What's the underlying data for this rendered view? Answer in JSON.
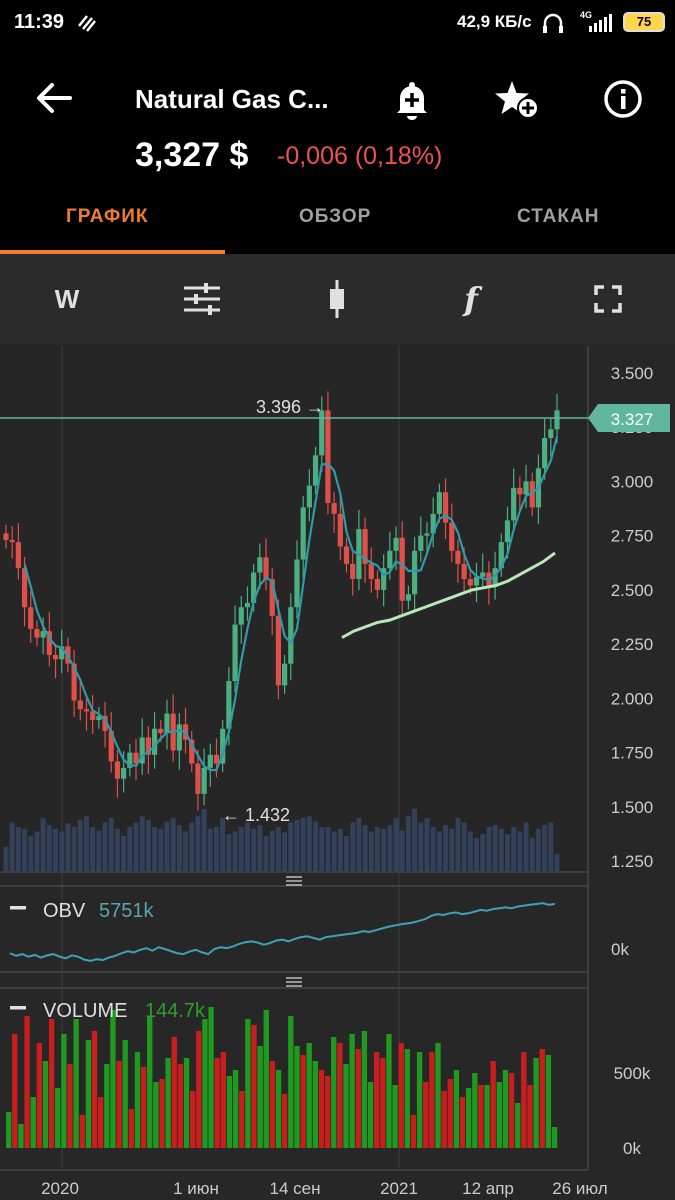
{
  "status_bar": {
    "time": "11:39",
    "network_speed": "42,9 КБ/с",
    "network_type": "4G",
    "battery": "75",
    "icons": [
      "signal-icon",
      "headset-icon",
      "battery-icon"
    ]
  },
  "header": {
    "instrument": "Natural Gas C...",
    "price": "3,327 $",
    "change": "-0,006 (0,18%)",
    "change_color": "#ef5350",
    "icons": [
      "back-arrow-icon",
      "add-alert-icon",
      "add-favorite-icon",
      "info-icon"
    ]
  },
  "tabs": [
    {
      "label": "ГРАФИК",
      "active": true
    },
    {
      "label": "ОБЗОР",
      "active": false
    },
    {
      "label": "СТАКАН",
      "active": false
    }
  ],
  "accent_color": "#ef7d2c",
  "toolbar": {
    "period_label": "W",
    "function_label": "f",
    "icons": [
      "settings-sliders-icon",
      "candlestick-icon",
      "function-icon",
      "fullscreen-icon"
    ]
  },
  "chart_data": [
    {
      "type": "candlestick",
      "y_ticks": [
        "3.500",
        "3.250",
        "3.000",
        "2.750",
        "2.500",
        "2.250",
        "2.000",
        "1.750",
        "1.500",
        "1.250"
      ],
      "ylim": [
        1.2,
        3.55
      ],
      "x_ticks": [
        "2020",
        "1 июн",
        "14 сен",
        "2021",
        "12 апр",
        "26 июл"
      ],
      "current_price_label": "3.327",
      "current_price": 3.327,
      "high_annotation": "3.396 →",
      "high_value": 3.396,
      "low_annotation": "← 1.432",
      "low_value": 1.432,
      "up_color": "#4caf82",
      "down_color": "#e0504a",
      "closes": [
        2.73,
        2.72,
        2.6,
        2.42,
        2.32,
        2.28,
        2.31,
        2.2,
        2.18,
        2.24,
        2.16,
        1.99,
        1.95,
        1.94,
        1.9,
        1.92,
        1.85,
        1.71,
        1.63,
        1.68,
        1.75,
        1.7,
        1.82,
        1.74,
        1.86,
        1.84,
        1.93,
        1.76,
        1.88,
        1.81,
        1.7,
        1.56,
        1.68,
        1.74,
        1.7,
        1.86,
        2.08,
        2.34,
        2.42,
        2.44,
        2.58,
        2.65,
        2.55,
        2.38,
        2.06,
        2.16,
        2.42,
        2.64,
        2.88,
        2.98,
        3.12,
        3.327,
        2.9,
        2.85,
        2.7,
        2.62,
        2.55,
        2.78,
        2.62,
        2.55,
        2.5,
        2.6,
        2.68,
        2.74,
        2.45,
        2.48,
        2.68,
        2.75,
        2.76,
        2.85,
        2.95,
        2.81,
        2.68,
        2.62,
        2.55,
        2.52,
        2.56,
        2.58,
        2.52,
        2.6,
        2.72,
        2.82,
        2.97,
        2.94,
        3.0,
        2.88,
        3.06,
        3.2,
        3.24,
        3.327
      ],
      "ma_long": [
        2.28,
        2.31,
        2.33,
        2.35,
        2.36,
        2.38,
        2.4,
        2.42,
        2.44,
        2.46,
        2.48,
        2.5,
        2.51,
        2.52,
        2.54,
        2.57,
        2.6,
        2.63,
        2.67
      ],
      "volume_heights": [
        0.28,
        0.55,
        0.5,
        0.48,
        0.4,
        0.45,
        0.6,
        0.52,
        0.48,
        0.45,
        0.54,
        0.5,
        0.58,
        0.62,
        0.5,
        0.46,
        0.55,
        0.6,
        0.48,
        0.4,
        0.5,
        0.55,
        0.62,
        0.58,
        0.5,
        0.48,
        0.56,
        0.6,
        0.52,
        0.45,
        0.55,
        0.62,
        0.7,
        0.48,
        0.5,
        0.6,
        0.42,
        0.45,
        0.5,
        0.55,
        0.48,
        0.52,
        0.4,
        0.46,
        0.5,
        0.44,
        0.55,
        0.58,
        0.6,
        0.62,
        0.56,
        0.5,
        0.5,
        0.45,
        0.48,
        0.4,
        0.55,
        0.6,
        0.52,
        0.45,
        0.5,
        0.48,
        0.52,
        0.6,
        0.46,
        0.62,
        0.7,
        0.55,
        0.6,
        0.5,
        0.45,
        0.52,
        0.48,
        0.6,
        0.55,
        0.45,
        0.38,
        0.42,
        0.5,
        0.52,
        0.48,
        0.42,
        0.5,
        0.45,
        0.55,
        0.38,
        0.48,
        0.52,
        0.55,
        0.2
      ]
    },
    {
      "type": "line",
      "title": "OBV",
      "value_label": "5751k",
      "value_color": "#5ba4b0",
      "y_ticks": [
        "0k"
      ],
      "values": [
        -10,
        -16,
        -12,
        -18,
        -14,
        -20,
        -15,
        -12,
        -18,
        -22,
        -15,
        -18,
        -25,
        -28,
        -24,
        -26,
        -20,
        -16,
        -10,
        -5,
        -8,
        -2,
        2,
        -4,
        4,
        0,
        -5,
        -10,
        -12,
        -6,
        -2,
        -8,
        -12,
        0,
        4,
        2,
        6,
        12,
        16,
        18,
        15,
        10,
        14,
        20,
        22,
        18,
        24,
        28,
        30,
        26,
        22,
        28,
        30,
        32,
        34,
        36,
        38,
        42,
        40,
        44,
        48,
        52,
        55,
        58,
        60,
        62,
        66,
        70,
        78,
        82,
        80,
        84,
        86,
        82,
        84,
        88,
        92,
        90,
        94,
        96,
        98,
        96,
        100,
        102,
        104,
        106,
        108,
        104,
        106
      ]
    },
    {
      "type": "bar",
      "title": "VOLUME",
      "value_label": "144.7k",
      "value_color": "#2ca02c",
      "y_ticks": [
        "500k",
        "0k"
      ],
      "values": [
        240,
        760,
        160,
        880,
        340,
        700,
        580,
        860,
        400,
        760,
        560,
        860,
        220,
        720,
        780,
        340,
        560,
        920,
        580,
        720,
        260,
        640,
        540,
        880,
        440,
        460,
        600,
        740,
        560,
        600,
        380,
        780,
        860,
        940,
        600,
        640,
        480,
        520,
        380,
        860,
        820,
        680,
        920,
        580,
        520,
        360,
        880,
        680,
        620,
        700,
        580,
        520,
        480,
        740,
        700,
        560,
        760,
        660,
        780,
        440,
        640,
        600,
        760,
        420,
        700,
        660,
        220,
        640,
        440,
        640,
        700,
        380,
        460,
        520,
        340,
        400,
        500,
        420,
        420,
        580,
        440,
        520,
        500,
        300,
        640,
        420,
        600,
        660,
        620,
        140
      ],
      "colors": [
        "g",
        "r",
        "g",
        "r",
        "g",
        "r",
        "g",
        "r",
        "g",
        "g",
        "r",
        "g",
        "r",
        "g",
        "r",
        "r",
        "g",
        "g",
        "r",
        "g",
        "r",
        "g",
        "r",
        "g",
        "g",
        "r",
        "g",
        "r",
        "r",
        "g",
        "r",
        "r",
        "g",
        "g",
        "r",
        "r",
        "g",
        "g",
        "r",
        "g",
        "r",
        "g",
        "g",
        "r",
        "g",
        "r",
        "g",
        "g",
        "r",
        "g",
        "g",
        "r",
        "r",
        "g",
        "r",
        "g",
        "g",
        "r",
        "g",
        "g",
        "r",
        "r",
        "g",
        "g",
        "r",
        "g",
        "r",
        "g",
        "r",
        "r",
        "g",
        "r",
        "r",
        "g",
        "r",
        "g",
        "g",
        "r",
        "g",
        "r",
        "g",
        "g",
        "r",
        "g",
        "r",
        "r",
        "g",
        "r",
        "g",
        "g"
      ]
    }
  ]
}
